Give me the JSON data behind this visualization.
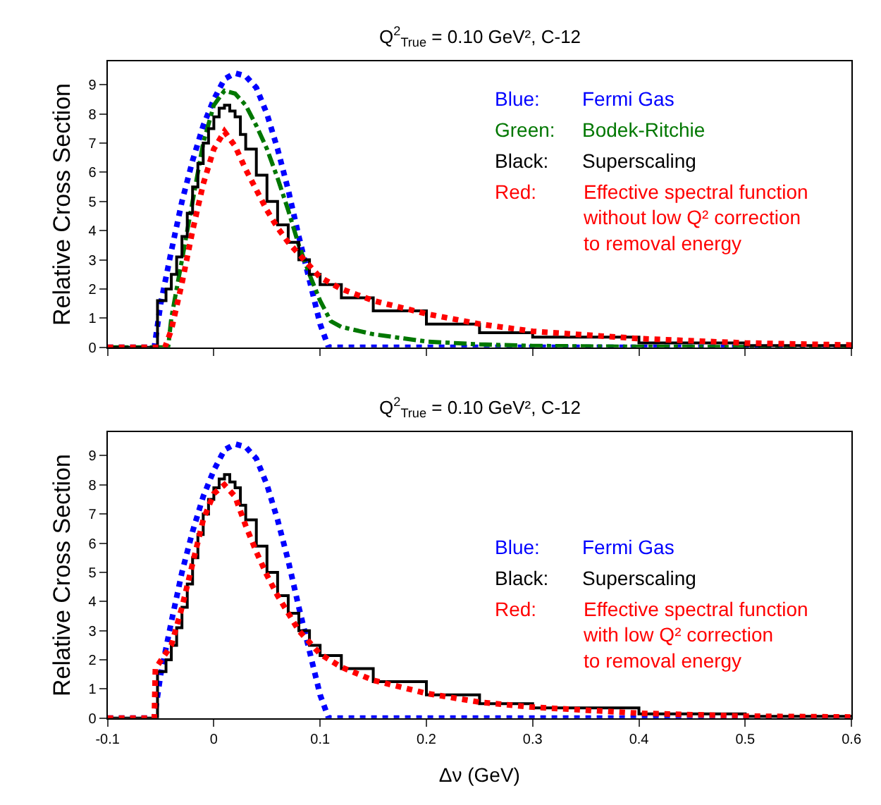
{
  "chart_data": [
    {
      "type": "line",
      "title": "Q$^{2}$$_{True}$ = 0.10 GeV², C-12",
      "ylabel": "Relative Cross Section",
      "xlim": [
        -0.1,
        0.6
      ],
      "ylim": [
        0,
        9.8
      ],
      "xticks": [
        -0.1,
        0,
        0.1,
        0.2,
        0.3,
        0.4,
        0.5,
        0.6
      ],
      "yticks": [
        0,
        1,
        2,
        3,
        4,
        5,
        6,
        7,
        8,
        9
      ],
      "tick_labels": "y",
      "legend": "top right",
      "annotations": [
        "Blue:",
        "Green:",
        "Black:",
        "Red:"
      ],
      "series": [
        {
          "name": "Fermi Gas",
          "color": "#0000ff",
          "line_style": "dotted",
          "x": [
            -0.1,
            -0.056,
            -0.05,
            -0.04,
            -0.03,
            -0.02,
            -0.01,
            0,
            0.01,
            0.02,
            0.03,
            0.04,
            0.05,
            0.06,
            0.07,
            0.08,
            0.09,
            0.1,
            0.108,
            0.2,
            0.4,
            0.6
          ],
          "values": [
            0,
            0,
            1.5,
            3.3,
            5,
            6.4,
            7.6,
            8.5,
            9.2,
            9.4,
            9.3,
            8.9,
            8,
            6.8,
            5.4,
            3.8,
            2.3,
            0.8,
            0,
            0,
            0,
            0
          ]
        },
        {
          "name": "Bodek-Ritchie",
          "color": "#007700",
          "line_style": "dashdot",
          "x": [
            -0.1,
            -0.043,
            -0.04,
            -0.03,
            -0.02,
            -0.01,
            0,
            0.01,
            0.02,
            0.03,
            0.04,
            0.05,
            0.06,
            0.07,
            0.08,
            0.09,
            0.1,
            0.11,
            0.12,
            0.15,
            0.2,
            0.25,
            0.3,
            0.4,
            0.6
          ],
          "values": [
            0,
            0,
            1,
            3,
            5,
            7,
            8.3,
            8.8,
            8.7,
            8.3,
            7.6,
            6.8,
            5.8,
            4.7,
            3.5,
            2.5,
            1.6,
            0.9,
            0.7,
            0.45,
            0.2,
            0.1,
            0.05,
            0.02,
            0
          ]
        },
        {
          "name": "Superscaling",
          "color": "#000000",
          "type": "step",
          "line_style": "solid",
          "x": [
            -0.1,
            -0.053,
            -0.045,
            -0.04,
            -0.035,
            -0.03,
            -0.025,
            -0.02,
            -0.015,
            -0.01,
            -0.005,
            0,
            0.005,
            0.01,
            0.015,
            0.02,
            0.025,
            0.03,
            0.04,
            0.05,
            0.06,
            0.07,
            0.08,
            0.09,
            0.1,
            0.12,
            0.15,
            0.2,
            0.25,
            0.3,
            0.4,
            0.5,
            0.6
          ],
          "values": [
            0,
            1.6,
            2,
            2.5,
            3.1,
            3.8,
            4.6,
            5.5,
            6.3,
            7,
            7.5,
            7.9,
            8.2,
            8.3,
            8.1,
            7.9,
            7.3,
            6.8,
            5.9,
            5,
            4.2,
            3.6,
            3,
            2.5,
            2.15,
            1.7,
            1.25,
            0.8,
            0.5,
            0.35,
            0.15,
            0.06,
            0.03
          ]
        },
        {
          "name": "Effective spectral function\nwithout low Q² correction\nto removal energy",
          "color": "#ff0000",
          "line_style": "dotted",
          "x": [
            -0.1,
            -0.046,
            -0.04,
            -0.03,
            -0.02,
            -0.01,
            0,
            0.01,
            0.02,
            0.03,
            0.04,
            0.05,
            0.06,
            0.07,
            0.08,
            0.09,
            0.1,
            0.12,
            0.15,
            0.2,
            0.25,
            0.3,
            0.4,
            0.5,
            0.6
          ],
          "values": [
            0,
            0,
            0.6,
            2.2,
            4,
            5.6,
            6.8,
            7.4,
            6.9,
            6.1,
            5.4,
            4.7,
            4.1,
            3.6,
            3.2,
            2.8,
            2.4,
            2,
            1.6,
            1.15,
            0.8,
            0.55,
            0.3,
            0.15,
            0.08
          ]
        }
      ]
    },
    {
      "type": "line",
      "title": "Q$^{2}$$_{True}$ = 0.10 GeV², C-12",
      "xlabel": "Δν (GeV)",
      "ylabel": "Relative Cross Section",
      "xlim": [
        -0.1,
        0.6
      ],
      "ylim": [
        0,
        9.8
      ],
      "xticks": [
        -0.1,
        {
          "value": 0,
          "label": "0"
        },
        0.1,
        0.2,
        0.3,
        0.4,
        0.5,
        0.6
      ],
      "yticks": [
        0,
        1,
        2,
        3,
        4,
        5,
        6,
        7,
        8,
        9
      ],
      "legend": "right",
      "annotations": [
        "Blue:",
        "Black:",
        "Red:"
      ],
      "series": [
        {
          "name": "Fermi Gas",
          "color": "#0000ff",
          "line_style": "dotted",
          "x": [
            -0.1,
            -0.056,
            -0.05,
            -0.04,
            -0.03,
            -0.02,
            -0.01,
            0,
            0.01,
            0.02,
            0.03,
            0.04,
            0.05,
            0.06,
            0.07,
            0.08,
            0.09,
            0.1,
            0.108,
            0.2,
            0.4,
            0.6
          ],
          "values": [
            0,
            0,
            1.5,
            3.3,
            5,
            6.4,
            7.6,
            8.5,
            9.2,
            9.4,
            9.3,
            8.9,
            8,
            6.8,
            5.4,
            3.8,
            2.3,
            0.8,
            0,
            0,
            0,
            0
          ]
        },
        {
          "name": "Superscaling",
          "color": "#000000",
          "type": "step",
          "line_style": "solid",
          "x": [
            -0.1,
            -0.053,
            -0.045,
            -0.04,
            -0.035,
            -0.03,
            -0.025,
            -0.02,
            -0.015,
            -0.01,
            -0.005,
            0,
            0.005,
            0.01,
            0.015,
            0.02,
            0.025,
            0.03,
            0.04,
            0.05,
            0.06,
            0.07,
            0.08,
            0.09,
            0.1,
            0.12,
            0.15,
            0.2,
            0.25,
            0.3,
            0.4,
            0.5,
            0.6
          ],
          "values": [
            0,
            1.6,
            2,
            2.5,
            3.1,
            3.8,
            4.6,
            5.5,
            6.3,
            7,
            7.5,
            7.9,
            8.2,
            8.35,
            8.1,
            7.9,
            7.3,
            6.8,
            5.9,
            5,
            4.2,
            3.6,
            3,
            2.5,
            2.15,
            1.7,
            1.25,
            0.8,
            0.5,
            0.35,
            0.15,
            0.06,
            0.03
          ]
        },
        {
          "name": "Effective spectral function\nwith low Q² correction\nto removal energy",
          "color": "#ff0000",
          "line_style": "dotted",
          "x": [
            -0.1,
            -0.056,
            -0.055,
            -0.04,
            -0.03,
            -0.02,
            -0.01,
            0,
            0.01,
            0.02,
            0.03,
            0.04,
            0.05,
            0.06,
            0.07,
            0.08,
            0.09,
            0.1,
            0.12,
            0.15,
            0.2,
            0.25,
            0.3,
            0.4,
            0.5,
            0.6
          ],
          "values": [
            0,
            0,
            1.7,
            2.5,
            3.8,
            5.3,
            6.8,
            7.7,
            8,
            7.6,
            6.6,
            5.7,
            4.9,
            4.2,
            3.6,
            3,
            2.6,
            2.2,
            1.75,
            1.3,
            0.85,
            0.55,
            0.38,
            0.17,
            0.07,
            0.04
          ]
        }
      ]
    }
  ]
}
